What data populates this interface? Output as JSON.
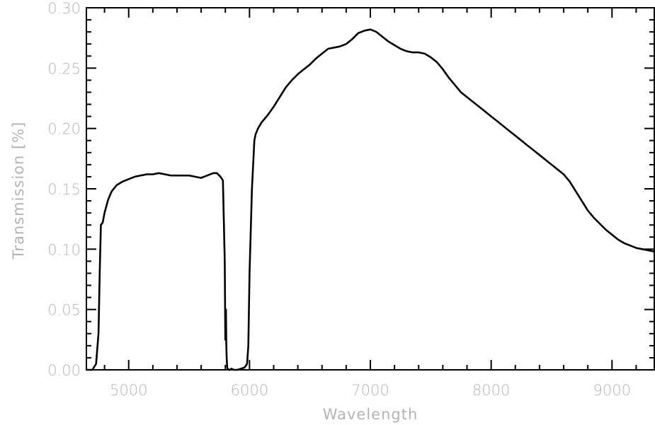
{
  "chart_data": {
    "type": "line",
    "title": "",
    "xlabel": "Wavelength",
    "ylabel": "Transmission [%]",
    "xlim": [
      4650,
      9350
    ],
    "ylim": [
      0.0,
      0.3
    ],
    "xticks": [
      5000,
      6000,
      7000,
      8000,
      9000
    ],
    "xtick_labels": [
      "5000",
      "6000",
      "7000",
      "8000",
      "9000"
    ],
    "yticks": [
      0.0,
      0.05,
      0.1,
      0.15,
      0.2,
      0.25,
      0.3
    ],
    "ytick_labels": [
      "0.00",
      "0.05",
      "0.10",
      "0.15",
      "0.20",
      "0.25",
      "0.30"
    ],
    "grid": false,
    "legend": "none",
    "colors": {
      "line": "#000000",
      "axis": "#000000",
      "labels": "#b3b3b3"
    },
    "series": [
      {
        "x": [
          4650,
          4700,
          4730,
          4750,
          4760,
          4770,
          4785,
          4800,
          4830,
          4860,
          4900,
          4950,
          5000,
          5050,
          5100,
          5150,
          5200,
          5250,
          5300,
          5350,
          5400,
          5450,
          5500,
          5550,
          5600,
          5650,
          5700,
          5730,
          5760,
          5780,
          5795,
          5800,
          5805,
          5808,
          5811,
          5815,
          5820,
          5830,
          5840,
          5850,
          5870,
          5900,
          5930,
          5960,
          5980,
          5990,
          6000,
          6020,
          6040,
          6050,
          6070,
          6100,
          6150,
          6200,
          6250,
          6300,
          6350,
          6400,
          6450,
          6500,
          6550,
          6600,
          6650,
          6700,
          6750,
          6800,
          6850,
          6900,
          6950,
          7000,
          7050,
          7100,
          7150,
          7200,
          7250,
          7300,
          7350,
          7400,
          7450,
          7500,
          7550,
          7600,
          7650,
          7700,
          7750,
          7800,
          7850,
          7900,
          7950,
          8000,
          8050,
          8100,
          8150,
          8200,
          8250,
          8300,
          8350,
          8400,
          8450,
          8500,
          8550,
          8600,
          8650,
          8700,
          8750,
          8800,
          8850,
          8900,
          8950,
          9000,
          9050,
          9100,
          9150,
          9200,
          9250,
          9300,
          9350
        ],
        "y": [
          0.0,
          0.0,
          0.005,
          0.03,
          0.08,
          0.12,
          0.122,
          0.13,
          0.141,
          0.148,
          0.153,
          0.156,
          0.158,
          0.16,
          0.161,
          0.162,
          0.162,
          0.163,
          0.162,
          0.161,
          0.161,
          0.161,
          0.161,
          0.16,
          0.159,
          0.161,
          0.163,
          0.163,
          0.16,
          0.157,
          0.09,
          0.025,
          0.05,
          0.02,
          0.01,
          0.002,
          0.001,
          0.0,
          0.0,
          0.001,
          0.0,
          0.0,
          0.001,
          0.002,
          0.005,
          0.02,
          0.08,
          0.15,
          0.19,
          0.195,
          0.2,
          0.205,
          0.211,
          0.218,
          0.226,
          0.234,
          0.24,
          0.245,
          0.249,
          0.253,
          0.258,
          0.262,
          0.266,
          0.267,
          0.268,
          0.27,
          0.274,
          0.279,
          0.281,
          0.282,
          0.28,
          0.276,
          0.272,
          0.269,
          0.266,
          0.264,
          0.263,
          0.263,
          0.262,
          0.259,
          0.255,
          0.249,
          0.242,
          0.236,
          0.23,
          0.226,
          0.222,
          0.218,
          0.214,
          0.21,
          0.206,
          0.202,
          0.198,
          0.194,
          0.19,
          0.186,
          0.182,
          0.178,
          0.174,
          0.17,
          0.166,
          0.162,
          0.156,
          0.148,
          0.14,
          0.132,
          0.126,
          0.121,
          0.116,
          0.112,
          0.108,
          0.105,
          0.103,
          0.101,
          0.1,
          0.099,
          0.098
        ]
      }
    ]
  }
}
